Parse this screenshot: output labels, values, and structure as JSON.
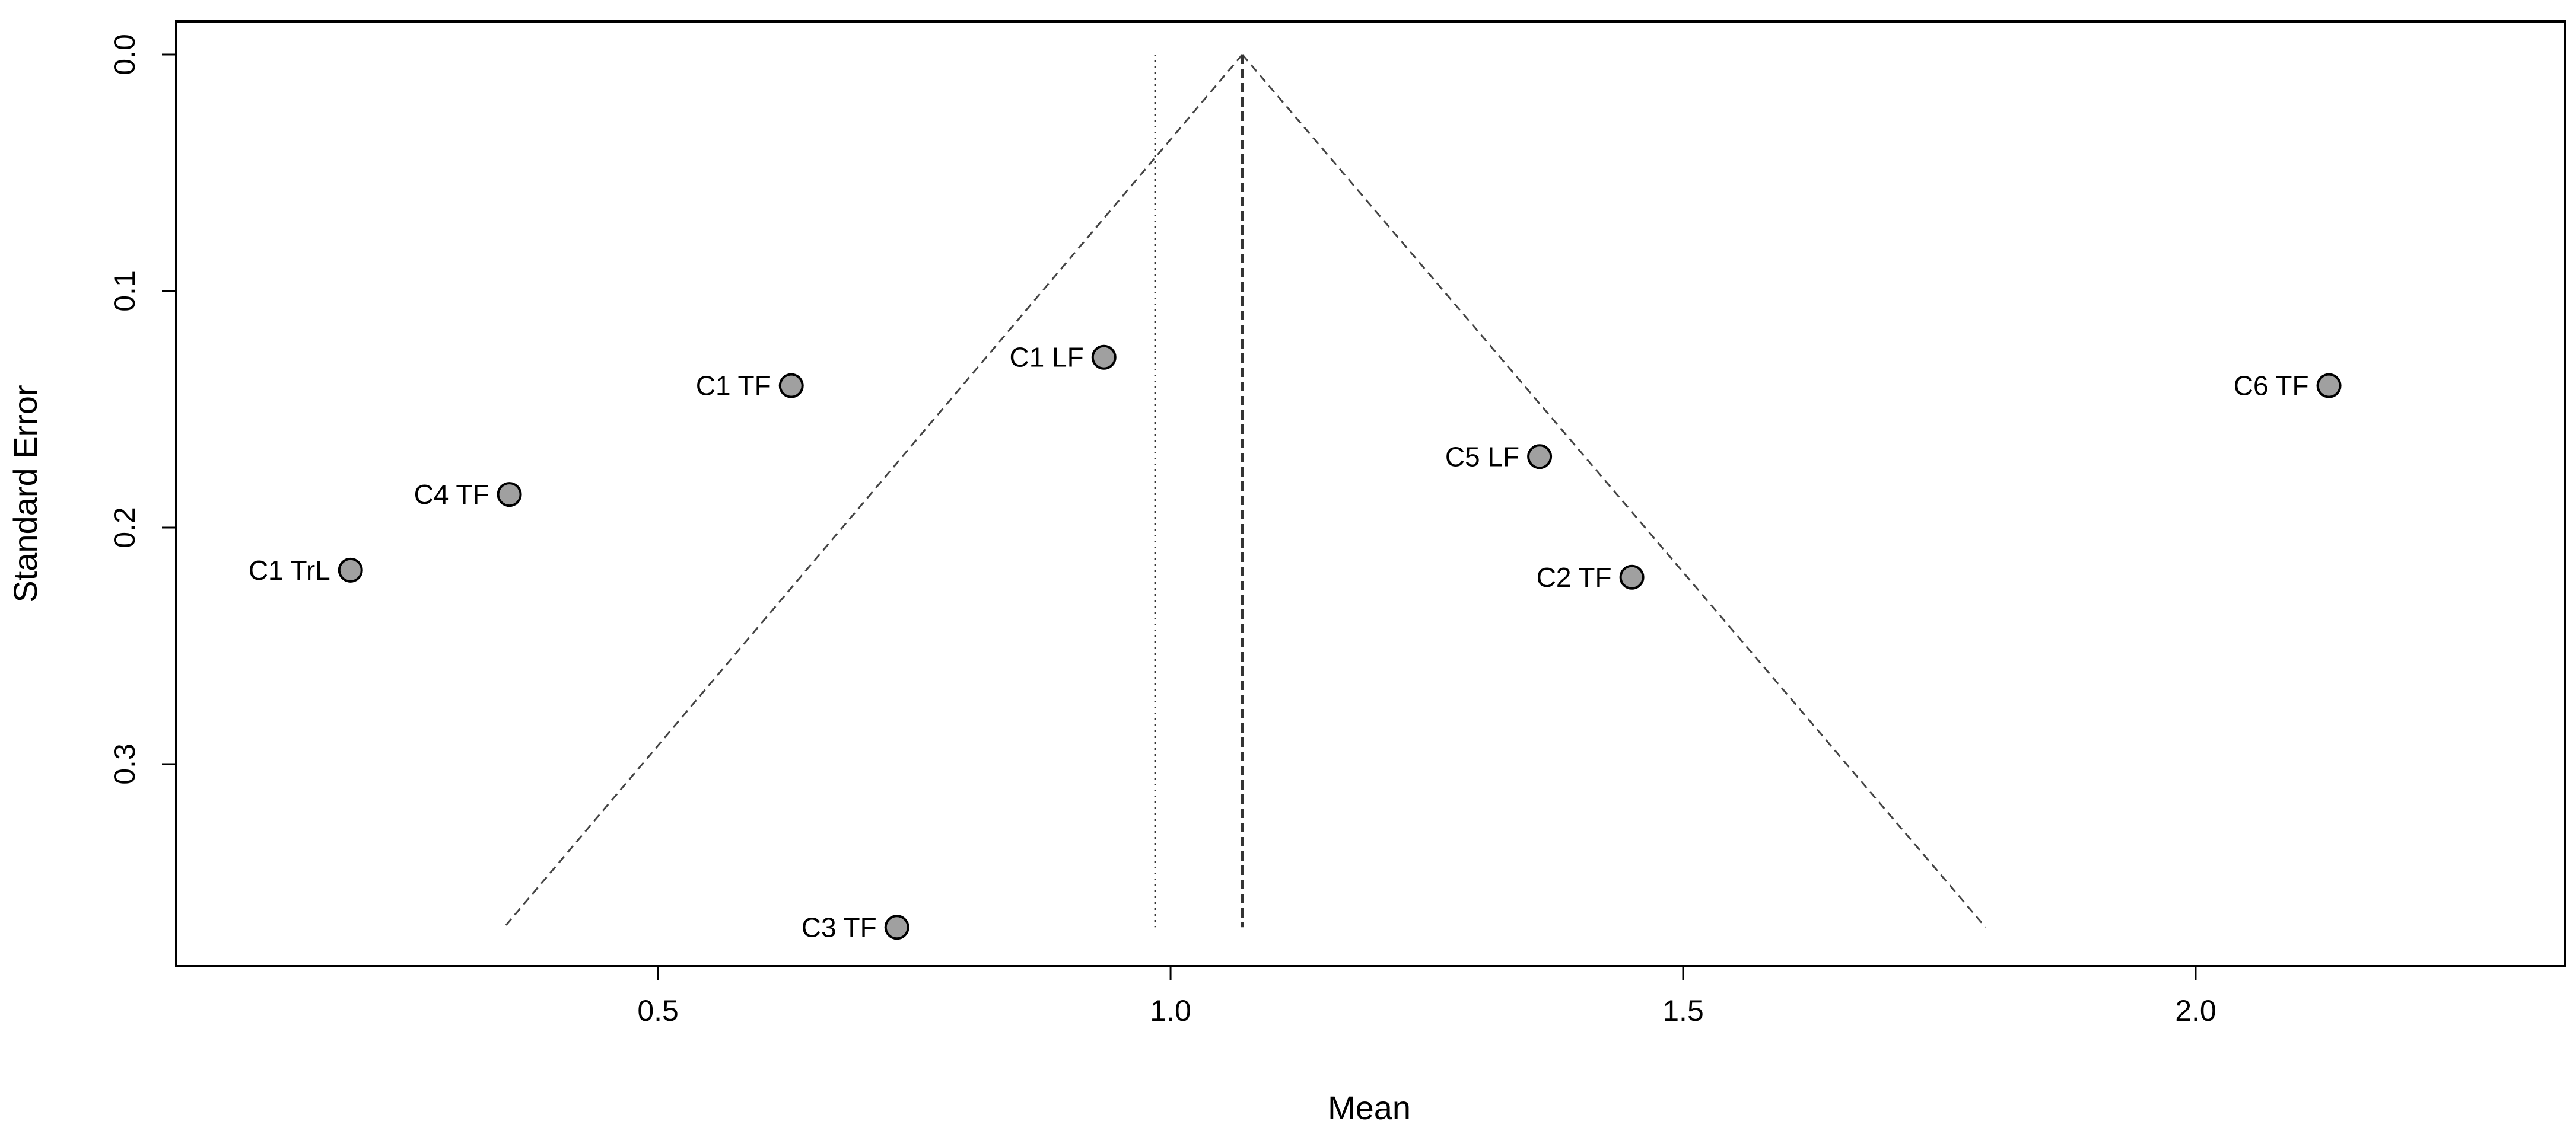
{
  "chart_data": {
    "type": "scatter",
    "title": "",
    "xlabel": "Mean",
    "ylabel": "Standard Error",
    "xlim": [
      0.03,
      2.36
    ],
    "ylim": [
      0.0,
      0.38
    ],
    "y_reversed": true,
    "x_ticks": [
      {
        "value": 0.5,
        "label": "0.5"
      },
      {
        "value": 1.0,
        "label": "1.0"
      },
      {
        "value": 1.5,
        "label": "1.5"
      },
      {
        "value": 2.0,
        "label": "2.0"
      }
    ],
    "y_ticks": [
      {
        "value": 0.0,
        "label": "0.0"
      },
      {
        "value": 0.1,
        "label": "0.1"
      },
      {
        "value": 0.2,
        "label": "0.2"
      },
      {
        "value": 0.3,
        "label": "0.3"
      }
    ],
    "points": [
      {
        "label": "C1 TF",
        "x": 0.63,
        "y": 0.14
      },
      {
        "label": "C1 LF",
        "x": 0.935,
        "y": 0.128
      },
      {
        "label": "C6 TF",
        "x": 2.13,
        "y": 0.14
      },
      {
        "label": "C4 TF",
        "x": 0.355,
        "y": 0.186
      },
      {
        "label": "C5 LF",
        "x": 1.36,
        "y": 0.17
      },
      {
        "label": "C1 TrL",
        "x": 0.2,
        "y": 0.218
      },
      {
        "label": "C2 TF",
        "x": 1.45,
        "y": 0.221
      },
      {
        "label": "C3 TF",
        "x": 0.733,
        "y": 0.369
      }
    ],
    "funnel": {
      "apex": {
        "x": 1.07,
        "y": 0.0
      },
      "left_base": {
        "x": 0.35,
        "y": 0.369
      },
      "right_base": {
        "x": 1.795,
        "y": 0.369
      },
      "center_line_x": 1.07,
      "reference_line_x": 0.985,
      "line_bottom_y": 0.369
    },
    "grid": false,
    "legend": "none",
    "colors": {
      "point_fill": "#a0a0a0",
      "point_stroke": "#000000",
      "line": "#444444"
    }
  }
}
